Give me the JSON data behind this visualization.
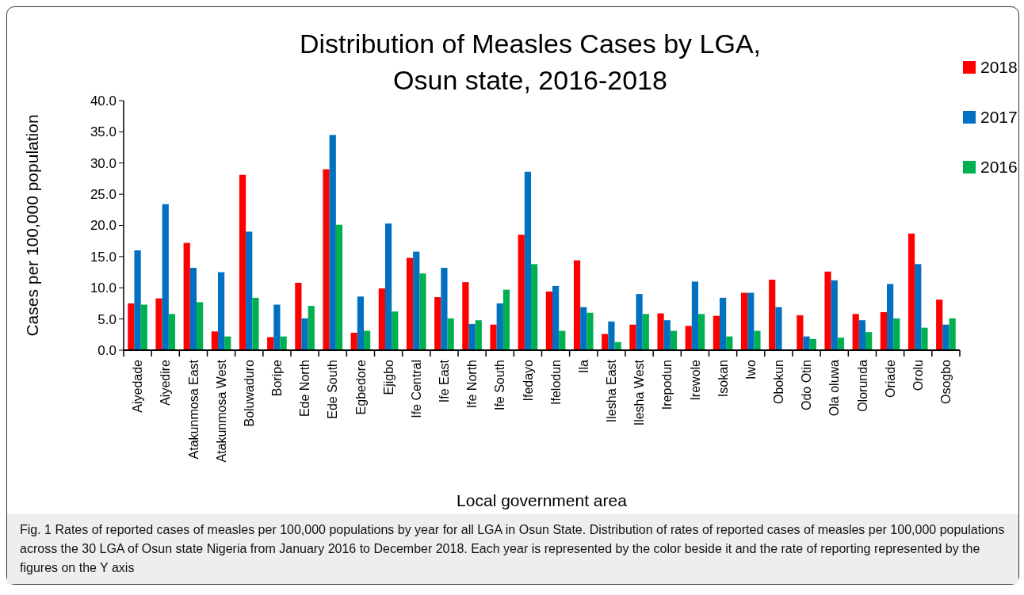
{
  "chart_data": {
    "type": "bar",
    "title": "Distribution of Measles Cases by LGA, Osun state, 2016-2018",
    "xlabel": "Local government area",
    "ylabel": "Cases per 100,000 population",
    "categories": [
      "Aiyedade",
      "Aiyedire",
      "Atakunmosa East",
      "Atakunmosa West",
      "Boluwaduro",
      "Boripe",
      "Ede North",
      "Ede South",
      "Egbedore",
      "Ejigbo",
      "Ife Central",
      "Ife East",
      "Ife North",
      "Ife South",
      "Ifedayo",
      "Ifelodun",
      "Ila",
      "Ilesha East",
      "Ilesha West",
      "Irepodun",
      "Irewole",
      "Isokan",
      "Iwo",
      "Obokun",
      "Odo Otin",
      "Ola oluwa",
      "Olorunda",
      "Oriade",
      "Orolu",
      "Osogbo"
    ],
    "series": [
      {
        "name": "2018",
        "color": "#ff0000",
        "values": [
          7.5,
          8.3,
          17.2,
          3.0,
          28.1,
          2.1,
          10.8,
          29.0,
          2.8,
          9.9,
          14.8,
          8.5,
          10.9,
          4.1,
          18.5,
          9.4,
          14.4,
          2.6,
          4.1,
          5.9,
          3.9,
          5.5,
          9.2,
          11.3,
          5.6,
          12.6,
          5.8,
          6.1,
          18.7,
          8.1
        ]
      },
      {
        "name": "2017",
        "color": "#0070c0",
        "values": [
          16.0,
          23.4,
          13.2,
          12.5,
          19.0,
          7.3,
          5.1,
          34.5,
          8.6,
          20.3,
          15.8,
          13.2,
          4.2,
          7.5,
          28.6,
          10.3,
          6.9,
          4.6,
          9.0,
          4.8,
          11.0,
          8.4,
          9.2,
          6.9,
          2.2,
          11.2,
          4.8,
          10.6,
          13.8,
          4.1
        ]
      },
      {
        "name": "2016",
        "color": "#00b050",
        "values": [
          7.3,
          5.8,
          7.7,
          2.2,
          8.4,
          2.2,
          7.1,
          20.1,
          3.1,
          6.2,
          12.3,
          5.1,
          4.8,
          9.7,
          13.8,
          3.1,
          6.0,
          1.3,
          5.8,
          3.1,
          5.8,
          2.2,
          3.1,
          0,
          1.8,
          2.0,
          2.9,
          5.1,
          3.6,
          5.1
        ]
      }
    ],
    "ylim": [
      0,
      40
    ],
    "yticks": [
      {
        "value": 0,
        "label": "0.0"
      },
      {
        "value": 5,
        "label": "5.0"
      },
      {
        "value": 10,
        "label": "10.0"
      },
      {
        "value": 15,
        "label": "15.0"
      },
      {
        "value": 20,
        "label": "20.0"
      },
      {
        "value": 25,
        "label": "25.0"
      },
      {
        "value": 30,
        "label": "30.0"
      },
      {
        "value": 35,
        "label": "35.0"
      },
      {
        "value": 40,
        "label": "40.0"
      }
    ],
    "legend": "top right",
    "grid": false,
    "annotations": [
      "Fig. 1 Rates of reported cases of measles per 100,000 populations by year for all LGA in Osun State. Distribution of rates of reported cases of measles per 100,000 populations across the 30 LGA of Osun state Nigeria from January 2016 to December 2018. Each year is represented by the color beside it and the rate of reporting represented by the figures on the Y axis"
    ]
  }
}
